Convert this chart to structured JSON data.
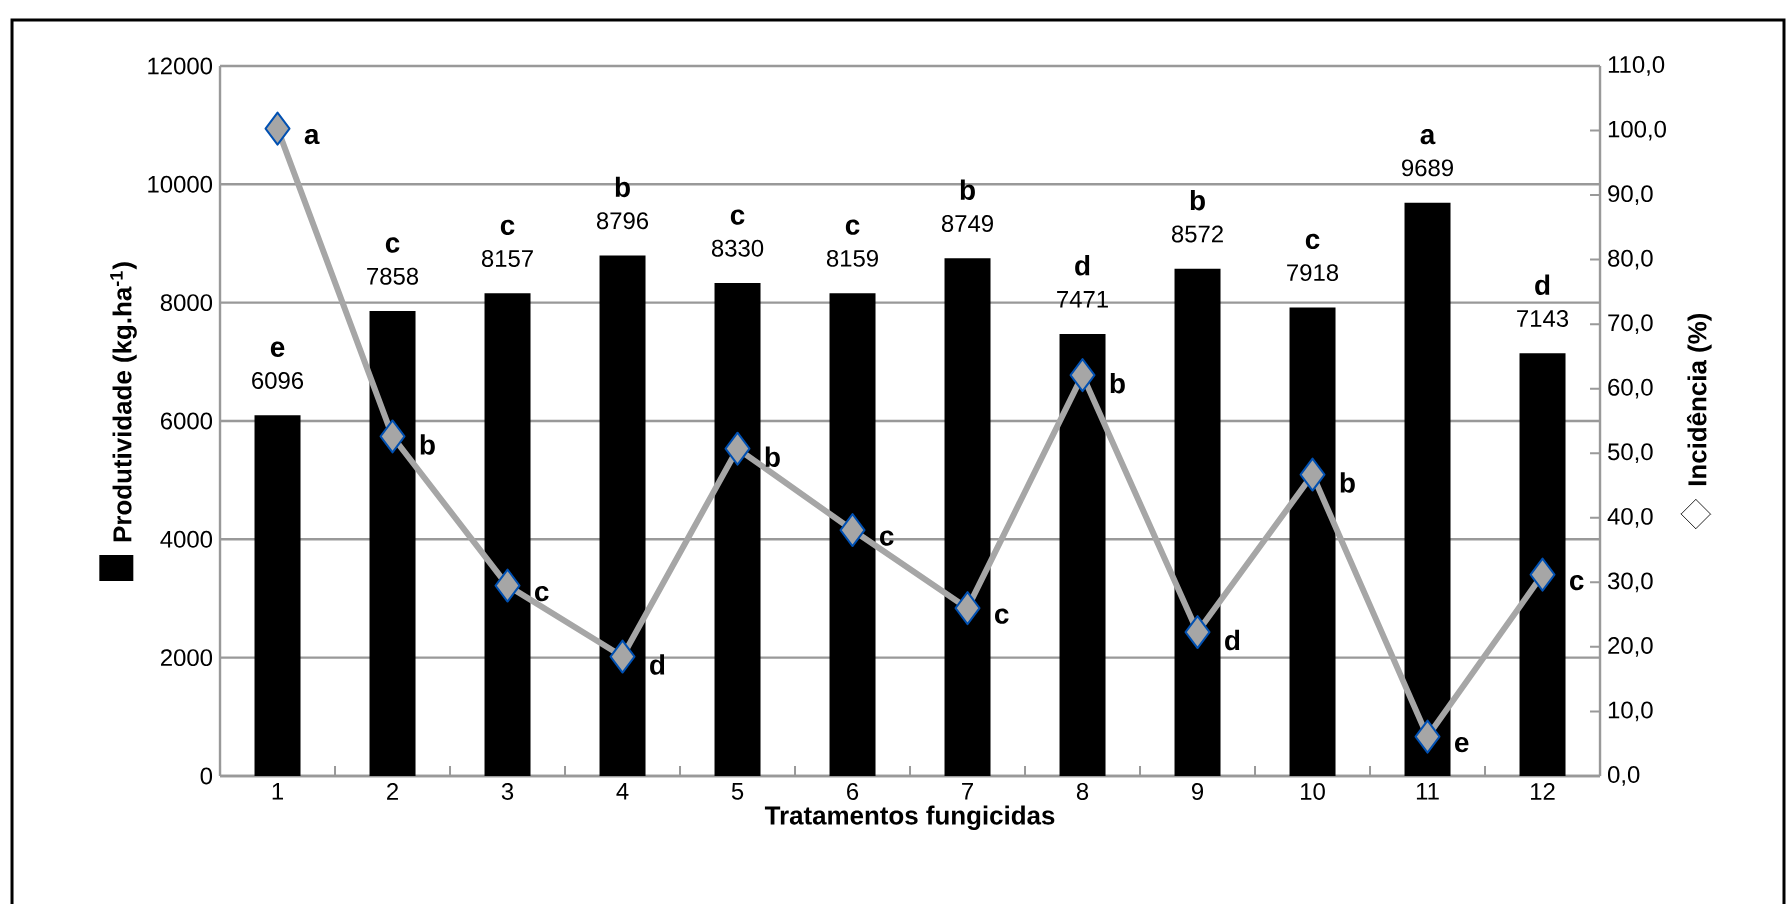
{
  "chart_data": {
    "type": "bar",
    "xlabel": "Tratamentos fungicidas",
    "ylabel": "Produtividade (kg.ha$^{-1}$)",
    "y2label": "Incidência (%)",
    "categories": [
      "1",
      "2",
      "3",
      "4",
      "5",
      "6",
      "7",
      "8",
      "9",
      "10",
      "11",
      "12"
    ],
    "series": [
      {
        "color": "#000000",
        "values": [
          6096,
          7858,
          8157,
          8796,
          8330,
          8159,
          8749,
          7471,
          8572,
          7918,
          9689,
          7143
        ],
        "value_labels": [
          "6096",
          "7858",
          "8157",
          "8796",
          "8330",
          "8159",
          "8749",
          "7471",
          "8572",
          "7918",
          "9689",
          "7143"
        ]
      },
      {
        "type": "line",
        "axis": "y2",
        "color": "#a6a6a6",
        "marker": "diamond",
        "values": [
          100.3,
          52.6,
          29.5,
          18.5,
          50.7,
          38.1,
          26.0,
          62.1,
          22.3,
          46.7,
          6.1,
          31.2
        ],
        "value_labels": [
          "a",
          "b",
          "c",
          "d",
          "b",
          "c",
          "c",
          "b",
          "d",
          "b",
          "e",
          "c"
        ]
      }
    ],
    "ylim": [
      0,
      12000
    ],
    "yticks": [
      0,
      2000,
      4000,
      6000,
      8000,
      10000,
      12000
    ],
    "y2lim": [
      0,
      110
    ],
    "y2ticks": [
      {
        "value": 0,
        "label": "0,0"
      },
      {
        "value": 10,
        "label": "10,0"
      },
      {
        "value": 20,
        "label": "20,0"
      },
      {
        "value": 30,
        "label": "30,0"
      },
      {
        "value": 40,
        "label": "40,0"
      },
      {
        "value": 50,
        "label": "50,0"
      },
      {
        "value": 60,
        "label": "60,0"
      },
      {
        "value": 70,
        "label": "70,0"
      },
      {
        "value": 80,
        "label": "80,0"
      },
      {
        "value": 90,
        "label": "90,0"
      },
      {
        "value": 100,
        "label": "100,0"
      },
      {
        "value": 110,
        "label": "110,0"
      }
    ],
    "grid": "y",
    "annotations": [
      {
        "text": "e",
        "x": "1",
        "y": 6096
      },
      {
        "text": "c",
        "x": "2",
        "y": 7858
      },
      {
        "text": "c",
        "x": "3",
        "y": 8157
      },
      {
        "text": "b",
        "x": "4",
        "y": 8796
      },
      {
        "text": "c",
        "x": "5",
        "y": 8330
      },
      {
        "text": "c",
        "x": "6",
        "y": 8159
      },
      {
        "text": "b",
        "x": "7",
        "y": 8749
      },
      {
        "text": "d",
        "x": "8",
        "y": 7471
      },
      {
        "text": "b",
        "x": "9",
        "y": 8572
      },
      {
        "text": "c",
        "x": "10",
        "y": 7918
      },
      {
        "text": "a",
        "x": "11",
        "y": 9689
      },
      {
        "text": "d",
        "x": "12",
        "y": 7143
      }
    ]
  }
}
